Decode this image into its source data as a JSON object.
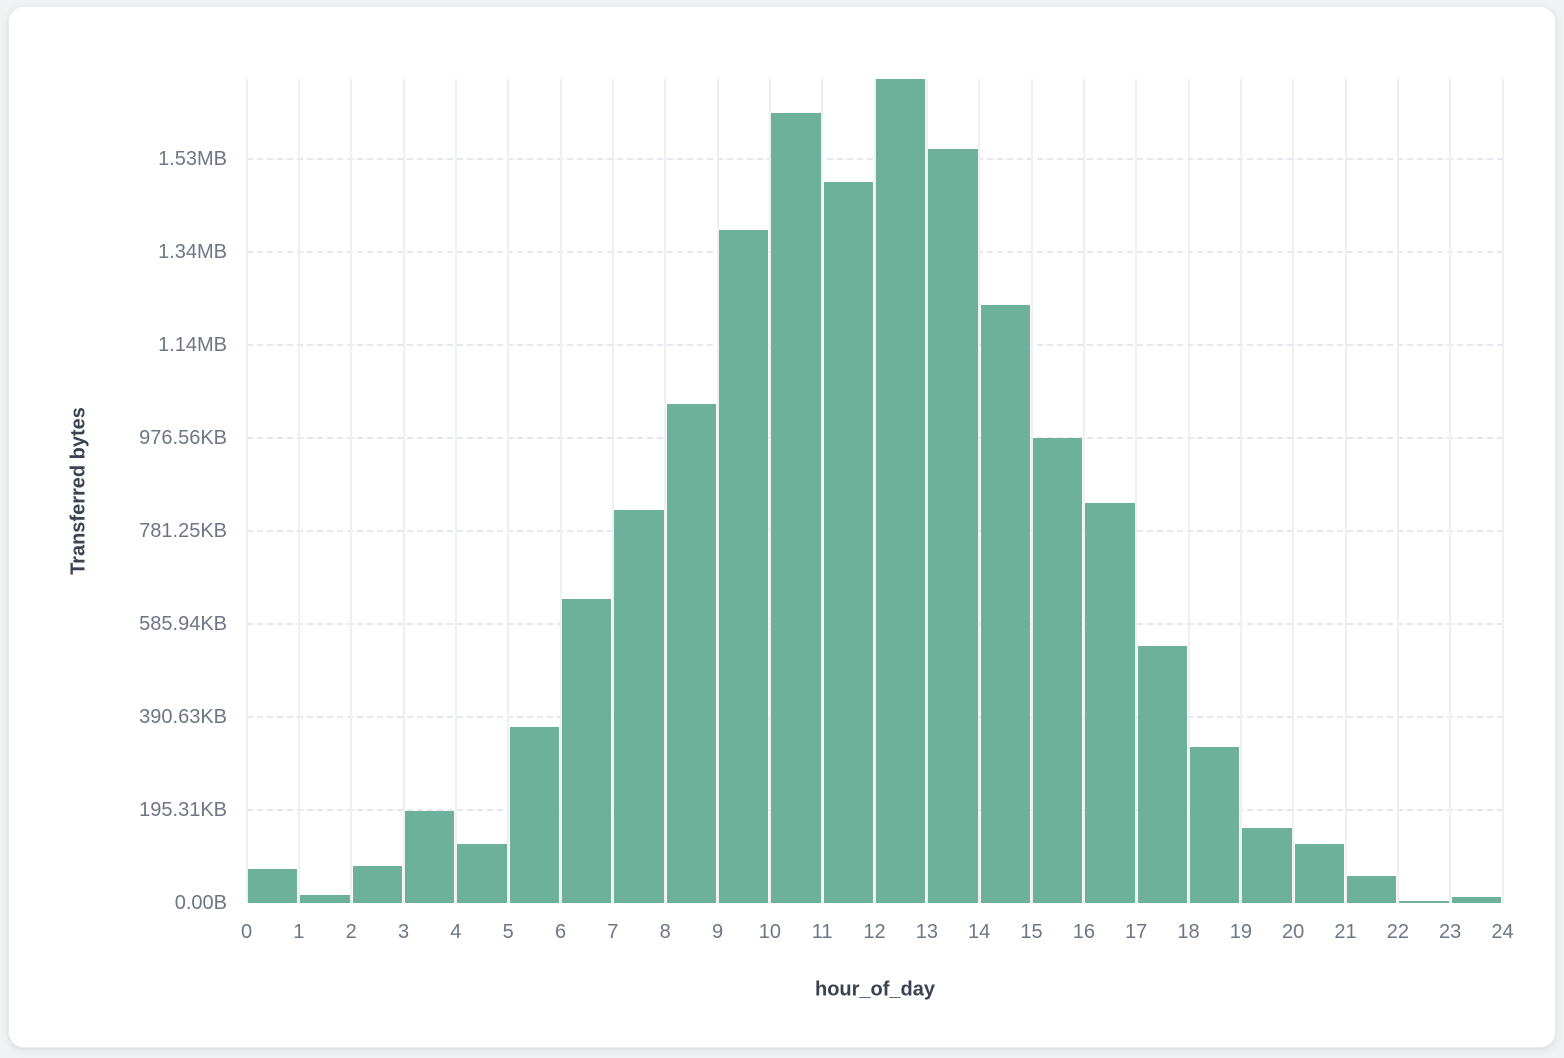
{
  "colors": {
    "bar_fill": "#6DB19A",
    "page_background": "#f1f2f4",
    "card_background": "#ffffff",
    "grid_vertical_solid": "#eef0f4",
    "grid_horizontal_dashed": "#e5e8ee",
    "tick_label": "#6e7685",
    "axis_title": "#3b4252"
  },
  "chart_data": {
    "type": "bar",
    "subtype": "histogram",
    "title": "",
    "xlabel": "hour_of_day",
    "ylabel": "Transferred bytes",
    "legend": "none",
    "grid": {
      "vertical": "solid",
      "horizontal": "dashed"
    },
    "bar_color": "#6DB19A",
    "x_bin_start_hours": [
      0,
      1,
      2,
      3,
      4,
      5,
      6,
      7,
      8,
      9,
      10,
      11,
      12,
      13,
      14,
      15,
      16,
      17,
      18,
      19,
      20,
      21,
      22,
      23
    ],
    "values_bytes": [
      72500,
      16600,
      79600,
      197800,
      126900,
      378400,
      653000,
      844400,
      1073500,
      1447500,
      1699000,
      1550000,
      1772000,
      1622000,
      1286500,
      1000000,
      861000,
      552000,
      335400,
      161900,
      127500,
      58100,
      4300,
      12900
    ],
    "x_tick_labels": [
      "0",
      "1",
      "2",
      "3",
      "4",
      "5",
      "6",
      "7",
      "8",
      "9",
      "10",
      "11",
      "12",
      "13",
      "14",
      "15",
      "16",
      "17",
      "18",
      "19",
      "20",
      "21",
      "22",
      "23",
      "24"
    ],
    "y_ticks": [
      {
        "label": "0.00B",
        "bytes": 0
      },
      {
        "label": "195.31KB",
        "bytes": 200000
      },
      {
        "label": "390.63KB",
        "bytes": 400000
      },
      {
        "label": "585.94KB",
        "bytes": 600000
      },
      {
        "label": "781.25KB",
        "bytes": 800000
      },
      {
        "label": "976.56KB",
        "bytes": 1000000
      },
      {
        "label": "1.14MB",
        "bytes": 1200000
      },
      {
        "label": "1.34MB",
        "bytes": 1400000
      },
      {
        "label": "1.53MB",
        "bytes": 1600000
      }
    ],
    "ylim_bytes": [
      0,
      1772000
    ],
    "xlim_hours": [
      0,
      24
    ]
  }
}
